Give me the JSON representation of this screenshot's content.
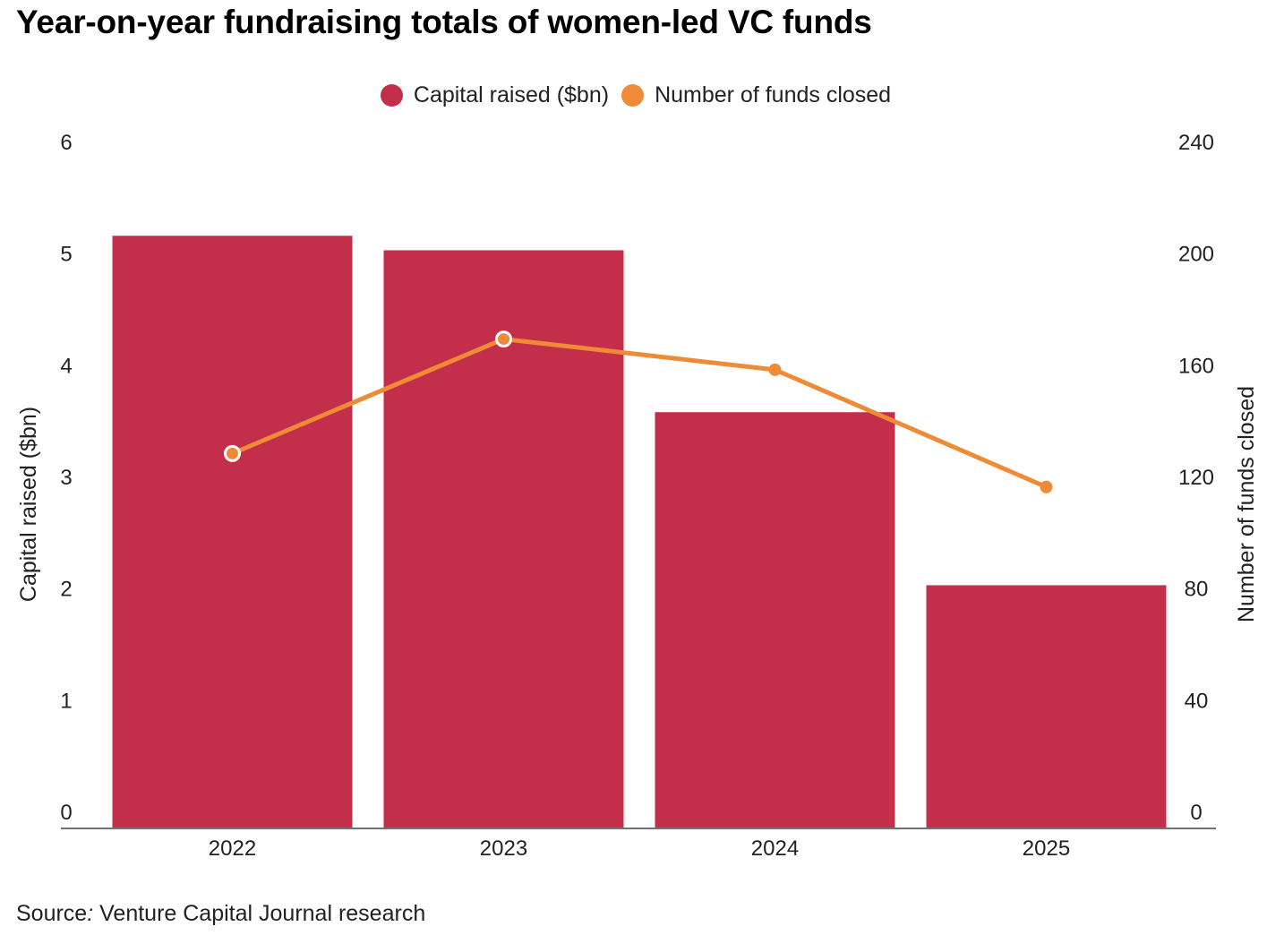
{
  "title": "Year-on-year fundraising totals of women-led VC funds",
  "legend": [
    {
      "label": "Capital raised ($bn)",
      "color": "#c32f4a"
    },
    {
      "label": "Number of funds closed",
      "color": "#ef8a36"
    }
  ],
  "source": {
    "label": "Source",
    "colon": ":",
    "text": " Venture Capital Journal research"
  },
  "chart_data": {
    "type": "bar",
    "categories": [
      "2022",
      "2023",
      "2024",
      "2025"
    ],
    "series": [
      {
        "name": "Capital raised ($bn)",
        "type": "bar",
        "axis": "left",
        "values": [
          5.3,
          5.17,
          3.72,
          2.17
        ],
        "color": "#c32f4a"
      },
      {
        "name": "Number of funds closed",
        "type": "line",
        "axis": "right",
        "values": [
          134,
          175,
          164,
          122
        ],
        "color": "#ef8a36"
      }
    ],
    "ylabel": "Capital raised ($bn)",
    "ylabel_right": "Number of funds closed",
    "ylim": [
      0,
      6
    ],
    "ylim_right": [
      0,
      240
    ],
    "yticks": [
      "0",
      "1",
      "2",
      "3",
      "4",
      "5",
      "6"
    ],
    "yticks_right": [
      "0",
      "40",
      "80",
      "120",
      "160",
      "200",
      "240"
    ],
    "grid": false,
    "legend_position": "top-center"
  }
}
